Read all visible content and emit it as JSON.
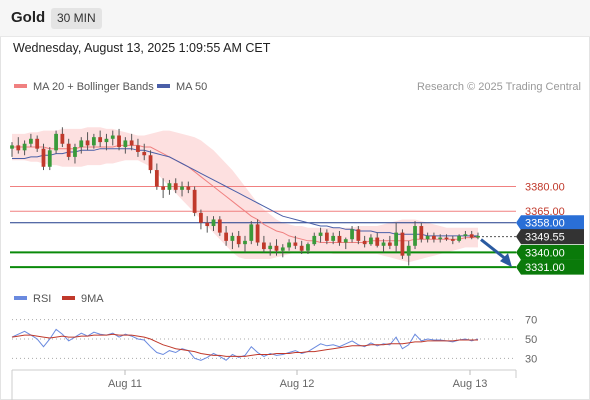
{
  "header": {
    "instrument": "Gold",
    "interval": "30 MIN",
    "datetime": "Wednesday, August 13, 2025 1:09:55 AM CET"
  },
  "colors": {
    "bull": "#3a9a3a",
    "bear": "#c0392b",
    "wick": "#555555",
    "bollinger_fill": "#fde0e0",
    "ma20": "#f08080",
    "ma50": "#4a5fa8",
    "resistance": "#f08080",
    "resistance_blue": "#1e3a8a",
    "support": "#0a8a0a",
    "tag_blue": "#2a6fd6",
    "tag_dark": "#333333",
    "tag_green": "#0a7a0a",
    "rsi": "#6a8adf",
    "rsi_ma": "#c0392b",
    "arrow": "#2a5aa0"
  },
  "chart_data": [
    {
      "type": "candlestick",
      "legend": [
        {
          "name": "MA 20 + Bollinger Bands",
          "color": "#f08080"
        },
        {
          "name": "MA 50",
          "color": "#4a5fa8"
        }
      ],
      "credit": "Research © 2025 Trading Central",
      "x_ticks": [
        "Aug 11",
        "Aug 12",
        "Aug 13"
      ],
      "ylim": [
        3322,
        3435
      ],
      "candles": [
        [
          3403,
          3407,
          3398,
          3405
        ],
        [
          3405,
          3410,
          3400,
          3402
        ],
        [
          3402,
          3408,
          3399,
          3406
        ],
        [
          3406,
          3412,
          3404,
          3409
        ],
        [
          3409,
          3411,
          3401,
          3403
        ],
        [
          3403,
          3406,
          3390,
          3392
        ],
        [
          3392,
          3404,
          3390,
          3402
        ],
        [
          3402,
          3414,
          3400,
          3412
        ],
        [
          3412,
          3416,
          3404,
          3406
        ],
        [
          3406,
          3409,
          3396,
          3398
        ],
        [
          3398,
          3406,
          3394,
          3404
        ],
        [
          3404,
          3410,
          3400,
          3408
        ],
        [
          3408,
          3413,
          3402,
          3405
        ],
        [
          3405,
          3412,
          3403,
          3410
        ],
        [
          3410,
          3414,
          3404,
          3407
        ],
        [
          3407,
          3412,
          3402,
          3409
        ],
        [
          3409,
          3414,
          3405,
          3411
        ],
        [
          3411,
          3415,
          3402,
          3404
        ],
        [
          3404,
          3410,
          3400,
          3408
        ],
        [
          3408,
          3412,
          3402,
          3405
        ],
        [
          3405,
          3409,
          3398,
          3401
        ],
        [
          3401,
          3406,
          3396,
          3399
        ],
        [
          3399,
          3402,
          3388,
          3390
        ],
        [
          3390,
          3394,
          3378,
          3380
        ],
        [
          3380,
          3385,
          3373,
          3378
        ],
        [
          3378,
          3384,
          3375,
          3382
        ],
        [
          3382,
          3385,
          3376,
          3378
        ],
        [
          3378,
          3383,
          3374,
          3380
        ],
        [
          3380,
          3383,
          3376,
          3378
        ],
        [
          3378,
          3380,
          3362,
          3364
        ],
        [
          3364,
          3366,
          3354,
          3358
        ],
        [
          3358,
          3362,
          3352,
          3356
        ],
        [
          3356,
          3362,
          3353,
          3360
        ],
        [
          3360,
          3362,
          3350,
          3352
        ],
        [
          3352,
          3356,
          3344,
          3347
        ],
        [
          3347,
          3352,
          3342,
          3350
        ],
        [
          3350,
          3353,
          3343,
          3345
        ],
        [
          3345,
          3350,
          3340,
          3347
        ],
        [
          3347,
          3359,
          3345,
          3357
        ],
        [
          3357,
          3360,
          3344,
          3346
        ],
        [
          3346,
          3350,
          3340,
          3342
        ],
        [
          3342,
          3346,
          3338,
          3344
        ],
        [
          3344,
          3348,
          3338,
          3341
        ],
        [
          3341,
          3345,
          3337,
          3343
        ],
        [
          3343,
          3348,
          3341,
          3346
        ],
        [
          3346,
          3350,
          3342,
          3344
        ],
        [
          3344,
          3347,
          3339,
          3341
        ],
        [
          3341,
          3346,
          3339,
          3345
        ],
        [
          3345,
          3352,
          3344,
          3350
        ],
        [
          3350,
          3355,
          3346,
          3352
        ],
        [
          3352,
          3354,
          3345,
          3347
        ],
        [
          3347,
          3352,
          3345,
          3350
        ],
        [
          3350,
          3353,
          3344,
          3346
        ],
        [
          3346,
          3349,
          3342,
          3348
        ],
        [
          3348,
          3356,
          3346,
          3354
        ],
        [
          3354,
          3356,
          3345,
          3347
        ],
        [
          3347,
          3350,
          3343,
          3345
        ],
        [
          3345,
          3351,
          3344,
          3349
        ],
        [
          3349,
          3352,
          3343,
          3344
        ],
        [
          3344,
          3348,
          3340,
          3346
        ],
        [
          3346,
          3350,
          3342,
          3344
        ],
        [
          3344,
          3358,
          3340,
          3352
        ],
        [
          3352,
          3354,
          3336,
          3338
        ],
        [
          3338,
          3347,
          3332,
          3344
        ],
        [
          3344,
          3359,
          3342,
          3356
        ],
        [
          3356,
          3358,
          3346,
          3348
        ],
        [
          3348,
          3352,
          3346,
          3350
        ],
        [
          3350,
          3352,
          3346,
          3348
        ],
        [
          3348,
          3351,
          3346,
          3349
        ],
        [
          3349,
          3351,
          3347,
          3348
        ],
        [
          3348,
          3350,
          3345,
          3347
        ],
        [
          3347,
          3351,
          3346,
          3350
        ],
        [
          3350,
          3353,
          3348,
          3351
        ],
        [
          3351,
          3353,
          3348,
          3349
        ],
        [
          3349,
          3352,
          3348,
          3350
        ]
      ],
      "ma20": [
        3404,
        3404,
        3404,
        3404,
        3404,
        3404,
        3403,
        3403,
        3403,
        3403,
        3403,
        3404,
        3404,
        3404,
        3404,
        3404,
        3404,
        3405,
        3405,
        3405,
        3405,
        3404,
        3404,
        3402,
        3400,
        3398,
        3396,
        3394,
        3392,
        3389,
        3386,
        3383,
        3380,
        3377,
        3374,
        3371,
        3368,
        3365,
        3362,
        3360,
        3357,
        3355,
        3353,
        3352,
        3350,
        3349,
        3348,
        3347,
        3347,
        3346,
        3346,
        3346,
        3346,
        3346,
        3346,
        3346,
        3346,
        3347,
        3347,
        3347,
        3347,
        3347,
        3347,
        3347,
        3348,
        3348,
        3348,
        3348,
        3348,
        3348,
        3348,
        3348,
        3349,
        3349,
        3349
      ],
      "bb_upper": [
        3412,
        3412,
        3412,
        3413,
        3413,
        3414,
        3414,
        3414,
        3415,
        3415,
        3415,
        3415,
        3416,
        3416,
        3416,
        3415,
        3415,
        3414,
        3413,
        3412,
        3411,
        3411,
        3412,
        3413,
        3414,
        3414,
        3413,
        3412,
        3411,
        3410,
        3408,
        3405,
        3402,
        3398,
        3394,
        3390,
        3385,
        3380,
        3375,
        3370,
        3366,
        3363,
        3360,
        3358,
        3357,
        3356,
        3356,
        3355,
        3355,
        3355,
        3355,
        3355,
        3355,
        3355,
        3355,
        3356,
        3356,
        3356,
        3356,
        3357,
        3358,
        3359,
        3360,
        3360,
        3360,
        3359,
        3358,
        3357,
        3356,
        3355,
        3355,
        3355,
        3355,
        3355,
        3355
      ],
      "bb_lower": [
        3396,
        3396,
        3396,
        3395,
        3395,
        3394,
        3393,
        3393,
        3392,
        3392,
        3392,
        3392,
        3393,
        3393,
        3393,
        3394,
        3394,
        3395,
        3396,
        3396,
        3396,
        3394,
        3392,
        3388,
        3384,
        3380,
        3376,
        3372,
        3368,
        3364,
        3360,
        3356,
        3352,
        3348,
        3344,
        3340,
        3337,
        3336,
        3336,
        3336,
        3336,
        3336,
        3337,
        3338,
        3339,
        3340,
        3340,
        3340,
        3340,
        3340,
        3340,
        3339,
        3339,
        3339,
        3339,
        3339,
        3339,
        3339,
        3339,
        3338,
        3337,
        3336,
        3335,
        3334,
        3335,
        3336,
        3337,
        3338,
        3339,
        3340,
        3341,
        3342,
        3343,
        3343,
        3343
      ],
      "ma50": [
        3397,
        3397,
        3397,
        3398,
        3398,
        3399,
        3399,
        3400,
        3400,
        3401,
        3401,
        3402,
        3402,
        3402,
        3403,
        3403,
        3403,
        3403,
        3403,
        3403,
        3402,
        3402,
        3401,
        3400,
        3399,
        3398,
        3396,
        3394,
        3392,
        3390,
        3388,
        3386,
        3384,
        3382,
        3380,
        3378,
        3376,
        3374,
        3372,
        3370,
        3368,
        3366,
        3364,
        3362,
        3361,
        3360,
        3359,
        3358,
        3357,
        3356,
        3356,
        3355,
        3355,
        3354,
        3354,
        3353,
        3353,
        3353,
        3352,
        3352,
        3352,
        3351,
        3351,
        3351,
        3351,
        3351,
        3350,
        3350,
        3350,
        3350,
        3350,
        3350,
        3350,
        3350,
        3350
      ],
      "levels": [
        {
          "label": "3380.00",
          "value": 3380,
          "style": "resistance"
        },
        {
          "label": "3365.00",
          "value": 3365,
          "style": "resistance"
        },
        {
          "label": "3358.00",
          "value": 3358,
          "style": "pivot"
        },
        {
          "label": "3349.55",
          "value": 3349.55,
          "style": "last"
        },
        {
          "label": "3340.00",
          "value": 3340,
          "style": "support"
        },
        {
          "label": "3331.00",
          "value": 3331,
          "style": "support"
        }
      ],
      "forecast_arrow": {
        "from": 3349,
        "to": 3331
      }
    },
    {
      "type": "line",
      "legend": [
        {
          "name": "RSI",
          "color": "#6a8adf"
        },
        {
          "name": "9MA",
          "color": "#c0392b"
        }
      ],
      "y_ticks": [
        "70",
        "50",
        "30"
      ],
      "ylim": [
        20,
        80
      ],
      "rsi": [
        52,
        55,
        58,
        54,
        50,
        42,
        50,
        60,
        55,
        48,
        52,
        56,
        53,
        57,
        55,
        54,
        56,
        52,
        55,
        53,
        50,
        49,
        42,
        36,
        34,
        38,
        36,
        40,
        38,
        30,
        28,
        31,
        35,
        32,
        28,
        34,
        31,
        33,
        42,
        36,
        32,
        35,
        33,
        34,
        36,
        38,
        35,
        37,
        41,
        45,
        43,
        44,
        42,
        45,
        48,
        44,
        42,
        46,
        43,
        45,
        44,
        52,
        40,
        44,
        55,
        48,
        50,
        49,
        49,
        48,
        47,
        49,
        50,
        48,
        50
      ],
      "rsi_ma": [
        52,
        53,
        54,
        54,
        53,
        52,
        51,
        52,
        53,
        52,
        52,
        53,
        53,
        54,
        54,
        54,
        55,
        54,
        54,
        54,
        53,
        52,
        50,
        47,
        44,
        42,
        40,
        39,
        38,
        37,
        35,
        34,
        33,
        33,
        32,
        32,
        32,
        32,
        33,
        34,
        34,
        34,
        35,
        35,
        35,
        36,
        36,
        37,
        37,
        38,
        39,
        40,
        41,
        42,
        43,
        43,
        43,
        44,
        44,
        44,
        45,
        45,
        45,
        46,
        47,
        47,
        48,
        48,
        48,
        48,
        48,
        49,
        49,
        49,
        49
      ]
    }
  ]
}
